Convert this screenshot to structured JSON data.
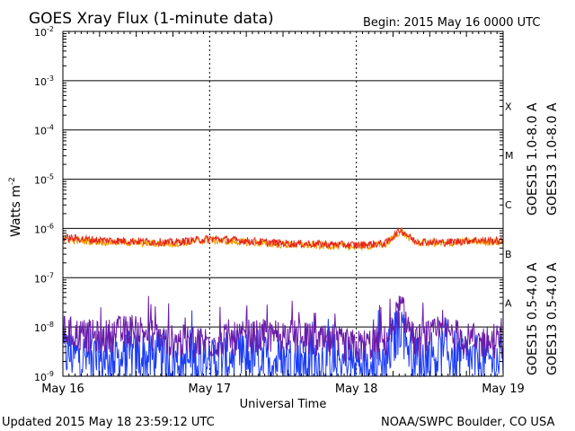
{
  "header": {
    "title": "GOES Xray Flux (1-minute data)",
    "begin": "Begin:  2015 May 16 0000 UTC"
  },
  "footer": {
    "updated": "Updated 2015 May 18 23:59:12 UTC",
    "credit": "NOAA/SWPC Boulder, CO USA"
  },
  "colors": {
    "goes15_long": "#e8221c",
    "goes13_long": "#f0a000",
    "goes15_short": "#1a3cf5",
    "goes13_short": "#6a1ca8",
    "grid": "#000000"
  },
  "chart_data": {
    "type": "line",
    "title": "GOES Xray Flux (1-minute data)",
    "xlabel": "Universal Time",
    "ylabel": "Watts m",
    "ylabel_sup": "-2",
    "ylog": true,
    "ylim": [
      1e-09,
      0.01
    ],
    "y_ticks": [
      {
        "base": "10",
        "exp": "-2"
      },
      {
        "base": "10",
        "exp": "-3"
      },
      {
        "base": "10",
        "exp": "-4"
      },
      {
        "base": "10",
        "exp": "-5"
      },
      {
        "base": "10",
        "exp": "-6"
      },
      {
        "base": "10",
        "exp": "-7"
      },
      {
        "base": "10",
        "exp": "-8"
      },
      {
        "base": "10",
        "exp": "-9"
      }
    ],
    "x_ticks": [
      "May 16",
      "May 17",
      "May 18",
      "May 19"
    ],
    "xlim_days": [
      16,
      19
    ],
    "flare_classes": [
      {
        "label": "X",
        "level": 0.0001
      },
      {
        "label": "M",
        "level": 1e-05
      },
      {
        "label": "C",
        "level": 1e-06
      },
      {
        "label": "B",
        "level": 1e-07
      },
      {
        "label": "A",
        "level": 1e-08
      }
    ],
    "series": [
      {
        "name": "GOES15 1.0-8.0 A",
        "color": "#e8221c",
        "x": [
          16.0,
          16.25,
          16.5,
          16.75,
          17.0,
          17.25,
          17.5,
          17.75,
          18.0,
          18.2,
          18.3,
          18.4,
          18.6,
          18.8,
          19.0
        ],
        "y": [
          6.5e-07,
          5.8e-07,
          5.5e-07,
          5.2e-07,
          6.2e-07,
          5.6e-07,
          5e-07,
          4.8e-07,
          4.6e-07,
          5e-07,
          9.5e-07,
          5.5e-07,
          5.2e-07,
          5.8e-07,
          5.5e-07
        ]
      },
      {
        "name": "GOES13 1.0-8.0 A",
        "color": "#f0a000",
        "x": [
          16.0,
          16.25,
          16.5,
          16.75,
          17.0,
          17.25,
          17.5,
          17.75,
          18.0,
          18.2,
          18.3,
          18.4,
          18.6,
          18.8,
          19.0
        ],
        "y": [
          6e-07,
          5.4e-07,
          5.1e-07,
          4.9e-07,
          5.8e-07,
          5.2e-07,
          4.7e-07,
          4.5e-07,
          4.3e-07,
          4.7e-07,
          9e-07,
          5.2e-07,
          4.9e-07,
          5.5e-07,
          5.2e-07
        ]
      },
      {
        "name": "GOES15 0.5-4.0 A",
        "color": "#1a3cf5",
        "x": [
          16.0,
          16.25,
          16.5,
          16.75,
          17.0,
          17.25,
          17.5,
          17.75,
          18.0,
          18.2,
          18.3,
          18.4,
          18.6,
          18.8,
          19.0
        ],
        "y": [
          3e-09,
          2e-09,
          2.5e-09,
          2e-09,
          2e-09,
          2.5e-09,
          2e-09,
          2e-09,
          1.8e-09,
          2e-09,
          1.2e-08,
          2e-09,
          3e-09,
          2e-09,
          2e-09
        ]
      },
      {
        "name": "GOES13 0.5-4.0 A",
        "color": "#6a1ca8",
        "x": [
          16.0,
          16.25,
          16.5,
          16.75,
          17.0,
          17.25,
          17.5,
          17.75,
          18.0,
          18.2,
          18.3,
          18.4,
          18.6,
          18.8,
          19.0
        ],
        "y": [
          8e-09,
          6e-09,
          9e-09,
          5e-09,
          5e-09,
          6e-09,
          7e-09,
          5e-09,
          4e-09,
          5e-09,
          2.5e-08,
          5e-09,
          8e-09,
          5e-09,
          5e-09
        ]
      }
    ]
  }
}
